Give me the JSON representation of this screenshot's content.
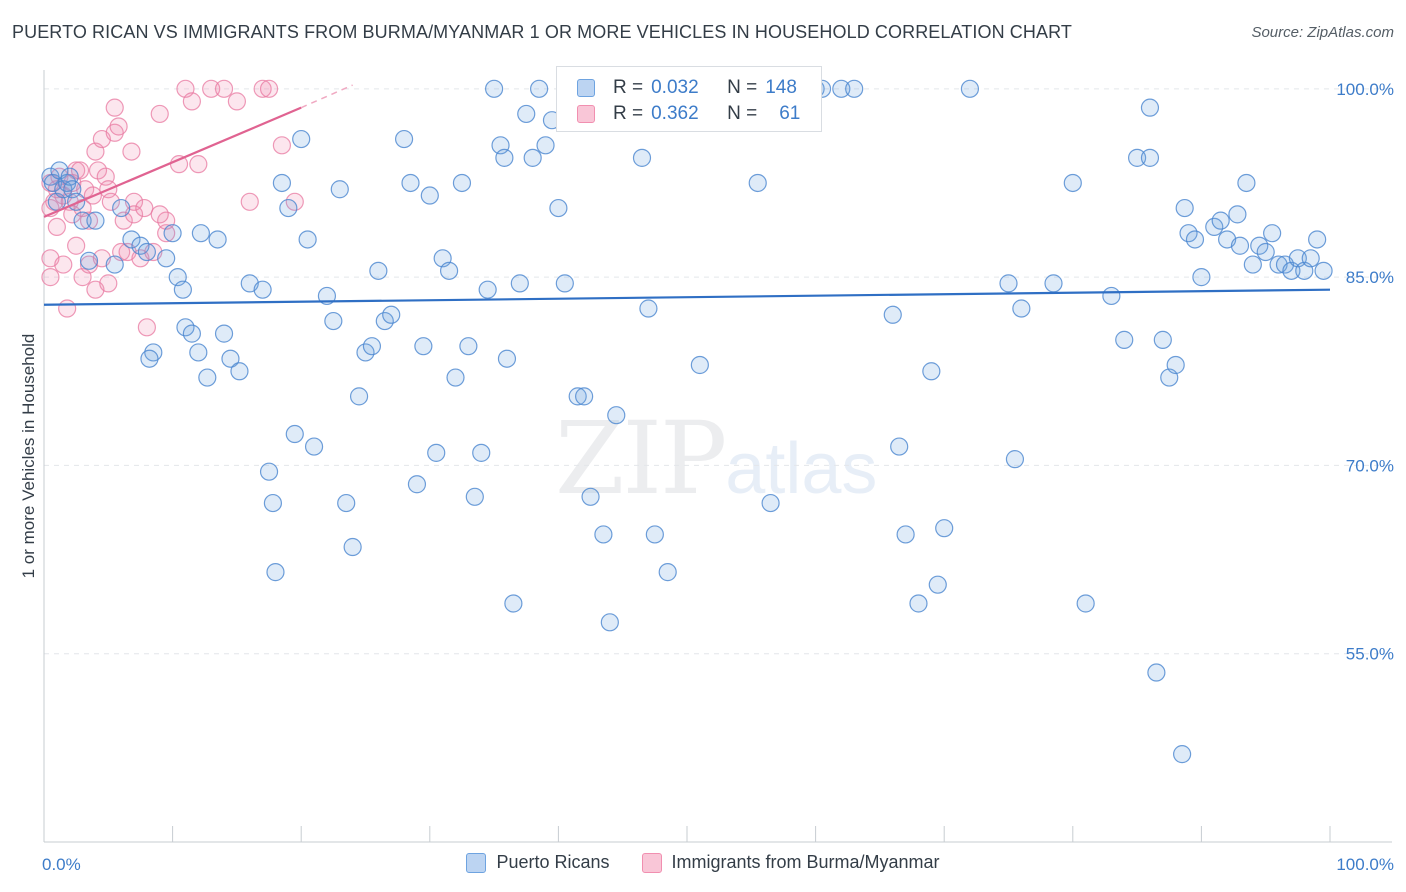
{
  "title": "PUERTO RICAN VS IMMIGRANTS FROM BURMA/MYANMAR 1 OR MORE VEHICLES IN HOUSEHOLD CORRELATION CHART",
  "source": "Source: ZipAtlas.com",
  "watermark": {
    "zip": "ZIP",
    "atlas": "atlas"
  },
  "colors": {
    "blue": "#6ea3e0",
    "blue_line": "#2f6fc4",
    "pink": "#f18fb0",
    "pink_line": "#e06391",
    "axis_text": "#3d7cc9"
  },
  "legend_top": {
    "rows": [
      {
        "r_label": "R = ",
        "r": "0.032",
        "n_label": "N = ",
        "n": "148"
      },
      {
        "r_label": "R = ",
        "r": "0.362",
        "n_label": "N = ",
        "n": "61"
      }
    ]
  },
  "legend_bottom": [
    "Puerto Ricans",
    "Immigrants from Burma/Myanmar"
  ],
  "chart_data": {
    "type": "scatter",
    "title": "PUERTO RICAN VS IMMIGRANTS FROM BURMA/MYANMAR 1 OR MORE VEHICLES IN HOUSEHOLD CORRELATION CHART",
    "xlabel": "",
    "ylabel": "1 or more Vehicles in Household",
    "xlim": [
      0,
      100
    ],
    "ylim": [
      40,
      101.5
    ],
    "x_tick_labels": [
      "0.0%",
      "100.0%"
    ],
    "y_ticks": [
      55,
      70,
      85,
      100
    ],
    "y_tick_labels": [
      "55.0%",
      "70.0%",
      "85.0%",
      "100.0%"
    ],
    "grid": true,
    "series": [
      {
        "name": "Puerto Ricans",
        "color": "#6ea3e0",
        "trend": {
          "x": [
            0,
            100
          ],
          "y": [
            82.8,
            84.0
          ]
        },
        "points": [
          [
            0.5,
            93
          ],
          [
            0.7,
            92.5
          ],
          [
            1,
            91
          ],
          [
            1.2,
            93.5
          ],
          [
            1.5,
            92
          ],
          [
            1.8,
            92.5
          ],
          [
            2,
            93
          ],
          [
            2.2,
            92
          ],
          [
            2.5,
            91
          ],
          [
            3,
            89.5
          ],
          [
            3.5,
            86.3
          ],
          [
            4,
            89.5
          ],
          [
            5.5,
            86
          ],
          [
            6,
            90.5
          ],
          [
            6.8,
            88
          ],
          [
            7.5,
            87.5
          ],
          [
            8,
            87
          ],
          [
            8.5,
            79
          ],
          [
            8.2,
            78.5
          ],
          [
            9.5,
            86.5
          ],
          [
            10,
            88.5
          ],
          [
            10.4,
            85
          ],
          [
            10.8,
            84
          ],
          [
            11,
            81
          ],
          [
            11.5,
            80.5
          ],
          [
            12,
            79
          ],
          [
            12.2,
            88.5
          ],
          [
            12.7,
            77
          ],
          [
            13.5,
            88
          ],
          [
            14,
            80.5
          ],
          [
            14.5,
            78.5
          ],
          [
            15.2,
            77.5
          ],
          [
            16,
            84.5
          ],
          [
            17,
            84
          ],
          [
            17.5,
            69.5
          ],
          [
            17.8,
            67
          ],
          [
            18,
            61.5
          ],
          [
            18.5,
            92.5
          ],
          [
            19,
            90.5
          ],
          [
            19.5,
            72.5
          ],
          [
            20,
            96
          ],
          [
            20.5,
            88
          ],
          [
            21,
            71.5
          ],
          [
            22,
            83.5
          ],
          [
            22.5,
            81.5
          ],
          [
            23,
            92
          ],
          [
            23.5,
            67
          ],
          [
            24,
            63.5
          ],
          [
            24.5,
            75.5
          ],
          [
            25,
            79
          ],
          [
            25.5,
            79.5
          ],
          [
            26,
            85.5
          ],
          [
            26.5,
            81.5
          ],
          [
            27,
            82
          ],
          [
            28,
            96
          ],
          [
            28.5,
            92.5
          ],
          [
            29,
            68.5
          ],
          [
            29.5,
            79.5
          ],
          [
            30,
            91.5
          ],
          [
            30.5,
            71
          ],
          [
            31,
            86.5
          ],
          [
            31.5,
            85.5
          ],
          [
            32,
            77
          ],
          [
            32.5,
            92.5
          ],
          [
            33,
            79.5
          ],
          [
            33.5,
            67.5
          ],
          [
            34,
            71
          ],
          [
            34.5,
            84
          ],
          [
            35,
            100
          ],
          [
            35.5,
            95.5
          ],
          [
            35.8,
            94.5
          ],
          [
            36,
            78.5
          ],
          [
            36.5,
            59
          ],
          [
            37,
            84.5
          ],
          [
            37.5,
            98
          ],
          [
            38,
            94.5
          ],
          [
            38.5,
            100
          ],
          [
            39,
            95.5
          ],
          [
            39.5,
            97.5
          ],
          [
            40,
            90.5
          ],
          [
            40.5,
            84.5
          ],
          [
            41.5,
            75.5
          ],
          [
            42,
            75.5
          ],
          [
            42.5,
            67.5
          ],
          [
            43.5,
            64.5
          ],
          [
            44,
            57.5
          ],
          [
            44.5,
            74
          ],
          [
            46.5,
            94.5
          ],
          [
            47,
            82.5
          ],
          [
            47.5,
            64.5
          ],
          [
            48,
            100
          ],
          [
            48.5,
            61.5
          ],
          [
            49,
            100
          ],
          [
            49.5,
            100
          ],
          [
            51,
            78
          ],
          [
            53.5,
            100
          ],
          [
            55.5,
            92.5
          ],
          [
            56.5,
            67
          ],
          [
            60,
            100
          ],
          [
            60.5,
            100
          ],
          [
            62,
            100
          ],
          [
            63,
            100
          ],
          [
            66,
            82
          ],
          [
            66.5,
            71.5
          ],
          [
            67,
            64.5
          ],
          [
            68,
            59
          ],
          [
            69,
            77.5
          ],
          [
            69.5,
            60.5
          ],
          [
            70,
            65
          ],
          [
            72,
            100
          ],
          [
            75,
            84.5
          ],
          [
            75.5,
            70.5
          ],
          [
            76,
            82.5
          ],
          [
            78.5,
            84.5
          ],
          [
            80,
            92.5
          ],
          [
            81,
            59
          ],
          [
            83,
            83.5
          ],
          [
            84,
            80
          ],
          [
            85,
            94.5
          ],
          [
            86,
            94.5
          ],
          [
            86,
            98.5
          ],
          [
            86.5,
            53.5
          ],
          [
            87,
            80
          ],
          [
            87.5,
            77
          ],
          [
            88,
            78
          ],
          [
            88.5,
            47
          ],
          [
            88.7,
            90.5
          ],
          [
            89,
            88.5
          ],
          [
            89.5,
            88
          ],
          [
            90,
            85
          ],
          [
            91,
            89
          ],
          [
            91.5,
            89.5
          ],
          [
            92,
            88
          ],
          [
            92.8,
            90
          ],
          [
            93,
            87.5
          ],
          [
            93.5,
            92.5
          ],
          [
            94,
            86
          ],
          [
            94.5,
            87.5
          ],
          [
            95,
            87
          ],
          [
            95.5,
            88.5
          ],
          [
            96,
            86
          ],
          [
            96.5,
            86
          ],
          [
            97,
            85.5
          ],
          [
            97.5,
            86.5
          ],
          [
            98,
            85.5
          ],
          [
            98.5,
            86.5
          ],
          [
            99,
            88
          ],
          [
            99.5,
            85.5
          ]
        ]
      },
      {
        "name": "Immigrants from Burma/Myanmar",
        "color": "#f18fb0",
        "trend": {
          "x": [
            0,
            20
          ],
          "y": [
            89.8,
            98.5
          ]
        },
        "trend_ext": {
          "x": [
            20,
            24
          ],
          "y": [
            98.5,
            100.3
          ]
        },
        "points": [
          [
            0.5,
            92.5
          ],
          [
            0.5,
            90.5
          ],
          [
            0.5,
            86.5
          ],
          [
            0.5,
            85
          ],
          [
            0.8,
            91
          ],
          [
            1,
            89
          ],
          [
            1,
            92
          ],
          [
            1.2,
            93
          ],
          [
            1.5,
            91.5
          ],
          [
            1.5,
            86
          ],
          [
            1.8,
            82.5
          ],
          [
            2,
            91
          ],
          [
            2.2,
            90
          ],
          [
            2.2,
            92.5
          ],
          [
            2.5,
            93.5
          ],
          [
            2.5,
            87.5
          ],
          [
            2.8,
            93.5
          ],
          [
            3,
            90.5
          ],
          [
            3,
            85
          ],
          [
            3.2,
            92
          ],
          [
            3.5,
            89.5
          ],
          [
            3.5,
            86
          ],
          [
            3.8,
            91.5
          ],
          [
            4,
            95
          ],
          [
            4,
            84
          ],
          [
            4.2,
            93.5
          ],
          [
            4.5,
            96
          ],
          [
            4.5,
            86.5
          ],
          [
            4.8,
            93
          ],
          [
            5,
            92
          ],
          [
            5,
            84.5
          ],
          [
            5.2,
            91
          ],
          [
            5.5,
            98.5
          ],
          [
            5.5,
            96.5
          ],
          [
            5.8,
            97
          ],
          [
            6,
            87
          ],
          [
            6.2,
            89.5
          ],
          [
            6.5,
            87
          ],
          [
            6.8,
            95
          ],
          [
            7,
            91
          ],
          [
            7,
            90
          ],
          [
            7.5,
            86.5
          ],
          [
            7.8,
            90.5
          ],
          [
            8,
            81
          ],
          [
            8.5,
            87
          ],
          [
            9,
            98
          ],
          [
            9.5,
            88.5
          ],
          [
            9.5,
            89.5
          ],
          [
            10.5,
            94
          ],
          [
            11,
            100
          ],
          [
            11.5,
            99
          ],
          [
            12,
            94
          ],
          [
            13,
            100
          ],
          [
            14,
            100
          ],
          [
            15,
            99
          ],
          [
            16,
            91
          ],
          [
            17,
            100
          ],
          [
            17.5,
            100
          ],
          [
            18.5,
            95.5
          ],
          [
            19.5,
            91
          ],
          [
            9,
            90
          ]
        ]
      }
    ]
  }
}
